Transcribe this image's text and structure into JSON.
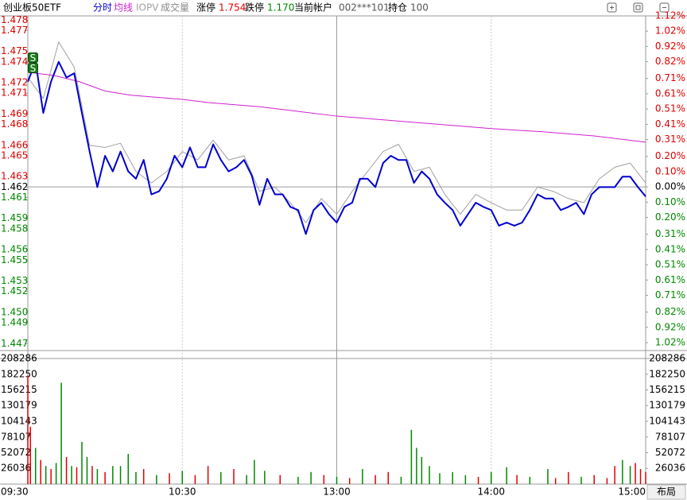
{
  "chart_data": {
    "type": "line",
    "title": "创业板50ETF",
    "info": [
      {
        "label": "涨停",
        "value": "1.754"
      },
      {
        "label": "跌停",
        "value": "1.170"
      },
      {
        "label": "当前帐户",
        "value": "002***101"
      },
      {
        "label": "持仓",
        "value": "100"
      }
    ],
    "layout_button": "布局",
    "xlim": [
      0,
      240
    ],
    "xticks": [
      {
        "value": 0,
        "label": "09:30"
      },
      {
        "value": 60,
        "label": "10:30"
      },
      {
        "value": 120,
        "label": "13:00"
      },
      {
        "value": 180,
        "label": "14:00"
      },
      {
        "value": 240,
        "label": "15:00"
      }
    ],
    "ylim": [
      1.4471,
      1.4784
    ],
    "yticks": [
      1.478,
      1.477,
      1.475,
      1.474,
      1.472,
      1.471,
      1.469,
      1.468,
      1.466,
      1.465,
      1.463,
      1.462,
      1.461,
      1.459,
      1.458,
      1.456,
      1.455,
      1.453,
      1.452,
      {
        "value": 1.45,
        "label": "1.450"
      },
      1.449,
      1.447
    ],
    "y2lim": [
      -1.02,
      1.12
    ],
    "y2ticks": [
      {
        "value": 1.12,
        "label": "1.12%"
      },
      {
        "value": 1.02,
        "label": "1.02%"
      },
      {
        "value": 0.92,
        "label": "0.92%"
      },
      {
        "value": 0.82,
        "label": "0.82%"
      },
      {
        "value": 0.71,
        "label": "0.71%"
      },
      {
        "value": 0.61,
        "label": "0.61%"
      },
      {
        "value": 0.51,
        "label": "0.51%"
      },
      {
        "value": 0.41,
        "label": "0.41%"
      },
      {
        "value": 0.31,
        "label": "0.31%"
      },
      {
        "value": 0.2,
        "label": "0.20%"
      },
      {
        "value": 0.1,
        "label": "0.10%"
      },
      {
        "value": 0,
        "label": "0.00%"
      },
      {
        "value": -0.1,
        "label": "0.10%"
      },
      {
        "value": -0.2,
        "label": "0.20%"
      },
      {
        "value": -0.31,
        "label": "0.31%"
      },
      {
        "value": -0.41,
        "label": "0.41%"
      },
      {
        "value": -0.51,
        "label": "0.51%"
      },
      {
        "value": -0.61,
        "label": "0.61%"
      },
      {
        "value": -0.71,
        "label": "0.71%"
      },
      {
        "value": -0.82,
        "label": "0.82%"
      },
      {
        "value": -0.92,
        "label": "0.92%"
      },
      {
        "value": -1.02,
        "label": "1.02%"
      }
    ],
    "up_color": "#e00000",
    "down_color": "#008800",
    "series": [
      {
        "name": "IOPV",
        "color": "#a0a0a0",
        "width": 1,
        "x": [
          0,
          6,
          12,
          18,
          24,
          30,
          36,
          42,
          48,
          54,
          60,
          66,
          72,
          78,
          84,
          90,
          96,
          102,
          108,
          114,
          120,
          126,
          132,
          138,
          144,
          150,
          156,
          162,
          168,
          174,
          180,
          186,
          192,
          198,
          204,
          210,
          216,
          222,
          228,
          234,
          240
        ],
        "values": [
          1.4725,
          1.4705,
          1.4759,
          1.4735,
          1.466,
          1.4658,
          1.4662,
          1.4635,
          1.4624,
          1.4635,
          1.4654,
          1.4646,
          1.4665,
          1.4646,
          1.465,
          1.4616,
          1.462,
          1.4605,
          1.4586,
          1.4609,
          1.4594,
          1.4616,
          1.4635,
          1.4654,
          1.4661,
          1.4635,
          1.4639,
          1.4613,
          1.4594,
          1.4613,
          1.4605,
          1.4598,
          1.4598,
          1.462,
          1.4616,
          1.4609,
          1.4605,
          1.4628,
          1.4639,
          1.4643,
          1.4624
        ]
      },
      {
        "name": "均线",
        "color": "#d020d0",
        "width": 1,
        "x": [
          0,
          10,
          20,
          30,
          40,
          50,
          60,
          70,
          80,
          90,
          100,
          120,
          140,
          160,
          180,
          200,
          220,
          240
        ],
        "values": [
          1.473,
          1.4727,
          1.4721,
          1.4712,
          1.4708,
          1.4706,
          1.4704,
          1.4701,
          1.4699,
          1.4697,
          1.4694,
          1.4688,
          1.4684,
          1.468,
          1.4676,
          1.4673,
          1.4669,
          1.4663
        ]
      },
      {
        "name": "分时",
        "color": "#0000d0",
        "width": 2,
        "x": [
          0,
          3,
          6,
          9,
          12,
          15,
          18,
          21,
          24,
          27,
          30,
          33,
          36,
          39,
          42,
          45,
          48,
          51,
          54,
          57,
          60,
          63,
          66,
          69,
          72,
          75,
          78,
          81,
          84,
          87,
          90,
          93,
          96,
          99,
          102,
          105,
          108,
          111,
          114,
          117,
          120,
          123,
          126,
          129,
          132,
          135,
          138,
          141,
          144,
          147,
          150,
          153,
          156,
          159,
          162,
          165,
          168,
          171,
          174,
          177,
          180,
          183,
          186,
          189,
          192,
          195,
          198,
          201,
          204,
          207,
          210,
          213,
          216,
          219,
          222,
          225,
          228,
          231,
          234,
          237,
          240
        ],
        "values": [
          1.4721,
          1.474,
          1.4691,
          1.4721,
          1.474,
          1.4725,
          1.4729,
          1.4691,
          1.4654,
          1.462,
          1.465,
          1.4635,
          1.4654,
          1.4635,
          1.4628,
          1.4646,
          1.4613,
          1.4616,
          1.4628,
          1.465,
          1.4639,
          1.4658,
          1.4639,
          1.4639,
          1.4661,
          1.4646,
          1.4635,
          1.4639,
          1.4646,
          1.4631,
          1.4603,
          1.4628,
          1.4613,
          1.4613,
          1.4601,
          1.4598,
          1.4575,
          1.4598,
          1.4605,
          1.4594,
          1.4586,
          1.4601,
          1.4605,
          1.4628,
          1.4628,
          1.462,
          1.4643,
          1.465,
          1.4646,
          1.4646,
          1.4624,
          1.4635,
          1.4628,
          1.4613,
          1.4605,
          1.4598,
          1.4583,
          1.4594,
          1.4605,
          1.4601,
          1.4598,
          1.4583,
          1.4586,
          1.4583,
          1.4586,
          1.4598,
          1.4613,
          1.4609,
          1.4609,
          1.4598,
          1.4601,
          1.4605,
          1.4594,
          1.4613,
          1.462,
          1.462,
          1.462,
          1.463,
          1.463,
          1.462,
          1.4611
        ]
      }
    ],
    "trades": [
      {
        "label": "S",
        "x": 2,
        "price": 1.4744
      },
      {
        "label": "S",
        "x": 2,
        "price": 1.4734
      }
    ],
    "volume": {
      "name": "成交量",
      "ylim": [
        0,
        208286
      ],
      "yticks": [
        208286,
        182250,
        156215,
        130179,
        104143,
        78107,
        52072,
        26036
      ],
      "x": [
        0,
        1,
        3,
        5,
        7,
        9,
        11,
        13,
        15,
        17,
        19,
        21,
        23,
        25,
        27,
        30,
        33,
        36,
        39,
        42,
        45,
        50,
        55,
        60,
        65,
        70,
        75,
        80,
        85,
        88,
        92,
        98,
        105,
        110,
        115,
        120,
        125,
        130,
        135,
        140,
        145,
        149,
        151,
        153,
        156,
        160,
        165,
        170,
        175,
        180,
        186,
        190,
        195,
        202,
        205,
        210,
        215,
        220,
        225,
        228,
        231,
        234,
        236,
        238,
        240
      ],
      "values": [
        180000,
        95000,
        60000,
        40000,
        30000,
        25000,
        35000,
        168000,
        45000,
        30000,
        28000,
        70000,
        45000,
        30000,
        25000,
        20000,
        30000,
        30000,
        50000,
        20000,
        25000,
        15000,
        18000,
        22000,
        15000,
        30000,
        20000,
        25000,
        15000,
        40000,
        22000,
        15000,
        12000,
        20000,
        15000,
        12000,
        10000,
        25000,
        15000,
        20000,
        12000,
        90000,
        60000,
        45000,
        30000,
        18000,
        20000,
        15000,
        12000,
        20000,
        28000,
        15000,
        12000,
        25000,
        10000,
        20000,
        12000,
        15000,
        10000,
        30000,
        40000,
        30000,
        35000,
        25000,
        20000
      ],
      "up": [
        true,
        true,
        false,
        true,
        false,
        true,
        false,
        false,
        true,
        false,
        true,
        false,
        false,
        true,
        false,
        true,
        false,
        false,
        false,
        false,
        true,
        false,
        true,
        false,
        true,
        true,
        false,
        true,
        false,
        false,
        false,
        true,
        false,
        false,
        true,
        false,
        true,
        false,
        true,
        true,
        false,
        false,
        false,
        false,
        false,
        false,
        false,
        false,
        true,
        false,
        false,
        true,
        false,
        false,
        true,
        true,
        false,
        true,
        true,
        true,
        false,
        false,
        true,
        true,
        true
      ]
    }
  }
}
